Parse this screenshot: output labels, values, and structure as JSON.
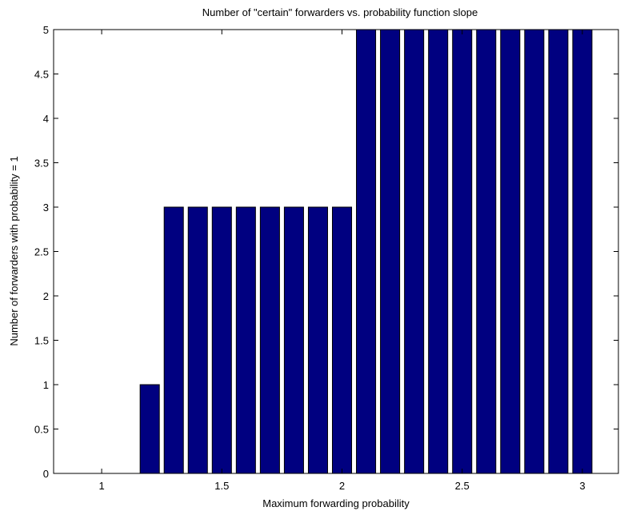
{
  "chart_data": {
    "type": "bar",
    "title": "Number of \"certain\" forwarders vs. probability function slope",
    "xlabel": "Maximum forwarding probability",
    "ylabel": "Number of forwarders with probability = 1",
    "xlim": [
      0.8,
      3.15
    ],
    "ylim": [
      0,
      5
    ],
    "x_ticks": [
      "1",
      "1.5",
      "2",
      "2.5",
      "3"
    ],
    "y_ticks": [
      "0",
      "0.5",
      "1",
      "1.5",
      "2",
      "2.5",
      "3",
      "3.5",
      "4",
      "4.5",
      "5"
    ],
    "x": [
      1.0,
      1.1,
      1.2,
      1.3,
      1.4,
      1.5,
      1.6,
      1.7,
      1.8,
      1.9,
      2.0,
      2.1,
      2.2,
      2.3,
      2.4,
      2.5,
      2.6,
      2.7,
      2.8,
      2.9,
      3.0
    ],
    "values": [
      0,
      0,
      1,
      3,
      3,
      3,
      3,
      3,
      3,
      3,
      3,
      5,
      5,
      5,
      5,
      5,
      5,
      5,
      5,
      5,
      5
    ],
    "bar_color": "#000080",
    "grid": false,
    "legend": false
  }
}
